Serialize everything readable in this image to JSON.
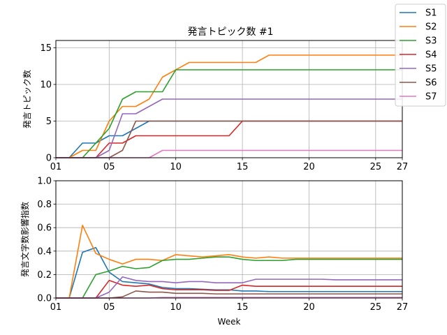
{
  "chart_data": [
    {
      "type": "line",
      "title": "発言トピック数 #1",
      "xlabel": "",
      "ylabel": "発言トピック数",
      "xlim": [
        1,
        27
      ],
      "ylim": [
        0,
        16
      ],
      "xticks": [
        1,
        5,
        10,
        15,
        20,
        25,
        27
      ],
      "xtick_labels": [
        "01",
        "05",
        "10",
        "15",
        "20",
        "25",
        "27"
      ],
      "yticks": [
        0,
        5,
        10,
        15
      ],
      "ytick_labels": [
        "0",
        "5",
        "10",
        "15"
      ],
      "grid": true,
      "legend_position": "top-right",
      "series": [
        {
          "name": "S1",
          "color": "#1f77b4",
          "x": [
            1,
            2,
            3,
            4,
            5,
            6,
            7,
            8,
            9,
            10,
            11,
            12,
            13,
            14,
            15,
            16,
            17,
            18,
            19,
            20,
            21,
            22,
            23,
            24,
            25,
            26,
            27
          ],
          "y": [
            0,
            0,
            2,
            2,
            3,
            3,
            4,
            5,
            5,
            5,
            5,
            5,
            5,
            5,
            5,
            5,
            5,
            5,
            5,
            5,
            5,
            5,
            5,
            5,
            5,
            5,
            5
          ]
        },
        {
          "name": "S2",
          "color": "#ff7f0e",
          "x": [
            1,
            2,
            3,
            4,
            5,
            6,
            7,
            8,
            9,
            10,
            11,
            12,
            13,
            14,
            15,
            16,
            17,
            18,
            19,
            20,
            21,
            22,
            23,
            24,
            25,
            26,
            27
          ],
          "y": [
            0,
            0,
            1,
            1,
            5,
            7,
            7,
            8,
            11,
            12,
            13,
            13,
            13,
            13,
            13,
            13,
            14,
            14,
            14,
            14,
            14,
            14,
            14,
            14,
            14,
            14,
            14
          ]
        },
        {
          "name": "S3",
          "color": "#2ca02c",
          "x": [
            1,
            2,
            3,
            4,
            5,
            6,
            7,
            8,
            9,
            10,
            11,
            12,
            13,
            14,
            15,
            16,
            17,
            18,
            19,
            20,
            21,
            22,
            23,
            24,
            25,
            26,
            27
          ],
          "y": [
            0,
            0,
            0,
            2,
            4,
            8,
            9,
            9,
            9,
            12,
            12,
            12,
            12,
            12,
            12,
            12,
            12,
            12,
            12,
            12,
            12,
            12,
            12,
            12,
            12,
            12,
            12
          ]
        },
        {
          "name": "S4",
          "color": "#d62728",
          "x": [
            1,
            2,
            3,
            4,
            5,
            6,
            7,
            8,
            9,
            10,
            11,
            12,
            13,
            14,
            15,
            16,
            17,
            18,
            19,
            20,
            21,
            22,
            23,
            24,
            25,
            26,
            27
          ],
          "y": [
            0,
            0,
            0,
            0,
            2,
            2,
            3,
            3,
            3,
            3,
            3,
            3,
            3,
            3,
            5,
            5,
            5,
            5,
            5,
            5,
            5,
            5,
            5,
            5,
            5,
            5,
            5
          ]
        },
        {
          "name": "S5",
          "color": "#9467bd",
          "x": [
            1,
            2,
            3,
            4,
            5,
            6,
            7,
            8,
            9,
            10,
            11,
            12,
            13,
            14,
            15,
            16,
            17,
            18,
            19,
            20,
            21,
            22,
            23,
            24,
            25,
            26,
            27
          ],
          "y": [
            0,
            0,
            0,
            0,
            1,
            6,
            6,
            7,
            8,
            8,
            8,
            8,
            8,
            8,
            8,
            8,
            8,
            8,
            8,
            8,
            8,
            8,
            8,
            8,
            8,
            8,
            8
          ]
        },
        {
          "name": "S6",
          "color": "#8c564b",
          "x": [
            1,
            2,
            3,
            4,
            5,
            6,
            7,
            8,
            9,
            10,
            11,
            12,
            13,
            14,
            15,
            16,
            17,
            18,
            19,
            20,
            21,
            22,
            23,
            24,
            25,
            26,
            27
          ],
          "y": [
            0,
            0,
            0,
            0,
            0,
            1,
            5,
            5,
            5,
            5,
            5,
            5,
            5,
            5,
            5,
            5,
            5,
            5,
            5,
            5,
            5,
            5,
            5,
            5,
            5,
            5,
            5
          ]
        },
        {
          "name": "S7",
          "color": "#e377c2",
          "x": [
            1,
            2,
            3,
            4,
            5,
            6,
            7,
            8,
            9,
            10,
            11,
            12,
            13,
            14,
            15,
            16,
            17,
            18,
            19,
            20,
            21,
            22,
            23,
            24,
            25,
            26,
            27
          ],
          "y": [
            0,
            0,
            0,
            0,
            0,
            0,
            0,
            0,
            1,
            1,
            1,
            1,
            1,
            1,
            1,
            1,
            1,
            1,
            1,
            1,
            1,
            1,
            1,
            1,
            1,
            1,
            1
          ]
        }
      ]
    },
    {
      "type": "line",
      "title": "",
      "xlabel": "Week",
      "ylabel": "発言文字数影響指数",
      "xlim": [
        1,
        27
      ],
      "ylim": [
        0,
        1.0
      ],
      "xticks": [
        1,
        5,
        10,
        15,
        20,
        25,
        27
      ],
      "xtick_labels": [
        "01",
        "05",
        "10",
        "15",
        "20",
        "25",
        "27"
      ],
      "yticks": [
        0,
        0.2,
        0.4,
        0.6,
        0.8,
        1.0
      ],
      "ytick_labels": [
        "0.0",
        "0.2",
        "0.4",
        "0.6",
        "0.8",
        "1.0"
      ],
      "grid": true,
      "series": [
        {
          "name": "S1",
          "color": "#1f77b4",
          "x": [
            1,
            2,
            3,
            4,
            5,
            6,
            7,
            8,
            9,
            10,
            11,
            12,
            13,
            14,
            15,
            16,
            17,
            18,
            19,
            20,
            21,
            22,
            23,
            24,
            25,
            26,
            27
          ],
          "y": [
            0,
            0,
            0.39,
            0.43,
            0.22,
            0.14,
            0.13,
            0.12,
            0.09,
            0.08,
            0.08,
            0.075,
            0.07,
            0.07,
            0.06,
            0.06,
            0.055,
            0.055,
            0.055,
            0.055,
            0.055,
            0.055,
            0.055,
            0.055,
            0.055,
            0.055,
            0.055
          ]
        },
        {
          "name": "S2",
          "color": "#ff7f0e",
          "x": [
            1,
            2,
            3,
            4,
            5,
            6,
            7,
            8,
            9,
            10,
            11,
            12,
            13,
            14,
            15,
            16,
            17,
            18,
            19,
            20,
            21,
            22,
            23,
            24,
            25,
            26,
            27
          ],
          "y": [
            0,
            0,
            0.62,
            0.38,
            0.33,
            0.29,
            0.33,
            0.33,
            0.32,
            0.37,
            0.36,
            0.35,
            0.36,
            0.37,
            0.35,
            0.34,
            0.35,
            0.34,
            0.34,
            0.34,
            0.34,
            0.34,
            0.34,
            0.34,
            0.34,
            0.34,
            0.34
          ]
        },
        {
          "name": "S3",
          "color": "#2ca02c",
          "x": [
            1,
            2,
            3,
            4,
            5,
            6,
            7,
            8,
            9,
            10,
            11,
            12,
            13,
            14,
            15,
            16,
            17,
            18,
            19,
            20,
            21,
            22,
            23,
            24,
            25,
            26,
            27
          ],
          "y": [
            0,
            0,
            0,
            0.2,
            0.23,
            0.27,
            0.25,
            0.26,
            0.32,
            0.33,
            0.33,
            0.34,
            0.35,
            0.35,
            0.33,
            0.32,
            0.32,
            0.32,
            0.33,
            0.33,
            0.33,
            0.33,
            0.33,
            0.33,
            0.33,
            0.33,
            0.33
          ]
        },
        {
          "name": "S4",
          "color": "#d62728",
          "x": [
            1,
            2,
            3,
            4,
            5,
            6,
            7,
            8,
            9,
            10,
            11,
            12,
            13,
            14,
            15,
            16,
            17,
            18,
            19,
            20,
            21,
            22,
            23,
            24,
            25,
            26,
            27
          ],
          "y": [
            0,
            0,
            0,
            0,
            0.15,
            0.11,
            0.1,
            0.11,
            0.08,
            0.07,
            0.07,
            0.07,
            0.065,
            0.065,
            0.11,
            0.1,
            0.1,
            0.1,
            0.1,
            0.1,
            0.1,
            0.1,
            0.1,
            0.1,
            0.1,
            0.1,
            0.1
          ]
        },
        {
          "name": "S5",
          "color": "#9467bd",
          "x": [
            1,
            2,
            3,
            4,
            5,
            6,
            7,
            8,
            9,
            10,
            11,
            12,
            13,
            14,
            15,
            16,
            17,
            18,
            19,
            20,
            21,
            22,
            23,
            24,
            25,
            26,
            27
          ],
          "y": [
            0,
            0,
            0,
            0,
            0.05,
            0.18,
            0.15,
            0.14,
            0.14,
            0.13,
            0.14,
            0.14,
            0.13,
            0.13,
            0.13,
            0.16,
            0.16,
            0.16,
            0.16,
            0.16,
            0.16,
            0.155,
            0.155,
            0.155,
            0.155,
            0.155,
            0.155
          ]
        },
        {
          "name": "S6",
          "color": "#8c564b",
          "x": [
            1,
            2,
            3,
            4,
            5,
            6,
            7,
            8,
            9,
            10,
            11,
            12,
            13,
            14,
            15,
            16,
            17,
            18,
            19,
            20,
            21,
            22,
            23,
            24,
            25,
            26,
            27
          ],
          "y": [
            0,
            0,
            0,
            0,
            0,
            0.01,
            0.06,
            0.05,
            0.05,
            0.04,
            0.04,
            0.04,
            0.035,
            0.035,
            0.035,
            0.035,
            0.035,
            0.035,
            0.035,
            0.035,
            0.035,
            0.035,
            0.035,
            0.035,
            0.035,
            0.035,
            0.035
          ]
        },
        {
          "name": "S7",
          "color": "#e377c2",
          "x": [
            1,
            2,
            3,
            4,
            5,
            6,
            7,
            8,
            9,
            10,
            11,
            12,
            13,
            14,
            15,
            16,
            17,
            18,
            19,
            20,
            21,
            22,
            23,
            24,
            25,
            26,
            27
          ],
          "y": [
            0,
            0,
            0,
            0,
            0,
            0,
            0,
            0,
            0.005,
            0.005,
            0.005,
            0.005,
            0.005,
            0.005,
            0.005,
            0.005,
            0.005,
            0.005,
            0.005,
            0.005,
            0.005,
            0.005,
            0.005,
            0.005,
            0.005,
            0.005,
            0.005
          ]
        }
      ]
    }
  ]
}
